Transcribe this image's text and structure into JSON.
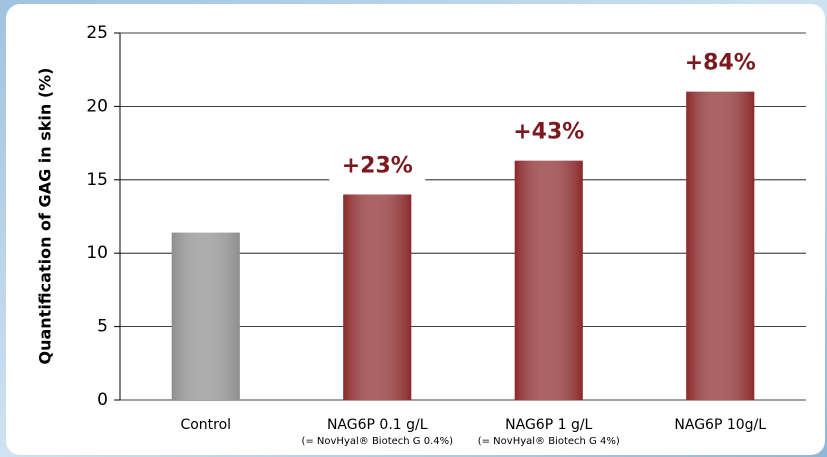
{
  "chart_data": {
    "type": "bar",
    "y_axis_label": "Quantification of GAG in skin (%)",
    "categories": [
      "Control",
      "NAG6P 0.1 g/L",
      "NAG6P 1 g/L",
      "NAG6P 10g/L"
    ],
    "category_notes": [
      null,
      "(= NovHyal® Biotech G 0.4%)",
      "(= NovHyal® Biotech G 4%)",
      null
    ],
    "values": [
      11.4,
      14.0,
      16.3,
      21.0
    ],
    "annotations": [
      null,
      "+23%",
      "+43%",
      "+84%"
    ],
    "colors": [
      "#8e8e8e",
      "#8a2a2c",
      "#8a2a2c",
      "#8a2a2c"
    ],
    "annotation_color": "#7b1a1e",
    "ylim": [
      0,
      25
    ],
    "yticks": [
      0,
      5,
      10,
      15,
      20,
      25
    ],
    "grid": true
  }
}
